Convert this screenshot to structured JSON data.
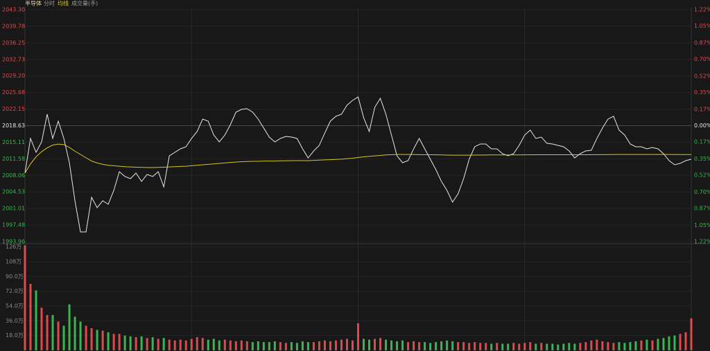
{
  "chart_data": [
    {
      "type": "line",
      "title": "半导体",
      "series": [
        {
          "name": "分时",
          "color": "#e8e8e8",
          "values": [
            2008.54,
            2015.91,
            2012.96,
            2015.17,
            2021.06,
            2015.91,
            2019.59,
            2015.91,
            2010.75,
            2002.65,
            1996.02,
            1996.02,
            2003.39,
            2001.18,
            2002.65,
            2001.91,
            2004.86,
            2008.84,
            2007.81,
            2007.36,
            2008.54,
            2006.77,
            2008.25,
            2007.81,
            2008.84,
            2005.6,
            2012.22,
            2012.96,
            2013.7,
            2014.14,
            2015.91,
            2017.38,
            2020.03,
            2019.59,
            2016.64,
            2015.17,
            2016.64,
            2018.85,
            2021.5,
            2022.09,
            2022.24,
            2021.5,
            2020.03,
            2018.12,
            2016.2,
            2015.17,
            2015.91,
            2016.35,
            2016.2,
            2015.91,
            2013.7,
            2011.78,
            2013.25,
            2014.43,
            2017.08,
            2019.59,
            2020.62,
            2021.06,
            2022.98,
            2024.01,
            2024.74,
            2020.32,
            2017.38,
            2022.53,
            2024.45,
            2021.06,
            2016.64,
            2012.22,
            2010.75,
            2011.19,
            2013.7,
            2015.91,
            2013.7,
            2011.49,
            2009.28,
            2006.77,
            2004.86,
            2002.36,
            2004.12,
            2007.36,
            2011.49,
            2014.14,
            2014.73,
            2014.73,
            2013.7,
            2013.7,
            2012.67,
            2012.22,
            2012.67,
            2014.43,
            2016.64,
            2017.67,
            2015.91,
            2016.2,
            2014.87,
            2014.73,
            2014.43,
            2014.14,
            2013.25,
            2011.78,
            2012.67,
            2013.25,
            2013.4,
            2015.91,
            2018.12,
            2020.03,
            2020.62,
            2017.67,
            2016.64,
            2014.73,
            2014.14,
            2014.14,
            2013.7,
            2013.99,
            2013.7,
            2012.67,
            2011.19,
            2010.31,
            2010.6,
            2011.19,
            2011.49
          ]
        },
        {
          "name": "均线",
          "color": "#d8c81e",
          "values": [
            2008.54,
            2010.5,
            2012.0,
            2013.1,
            2013.9,
            2014.5,
            2014.7,
            2014.6,
            2014.0,
            2013.2,
            2012.5,
            2011.8,
            2011.1,
            2010.7,
            2010.4,
            2010.2,
            2010.1,
            2010.0,
            2009.9,
            2009.85,
            2009.8,
            2009.75,
            2009.72,
            2009.72,
            2009.75,
            2009.8,
            2009.85,
            2009.9,
            2009.95,
            2010.0,
            2010.1,
            2010.2,
            2010.3,
            2010.4,
            2010.5,
            2010.6,
            2010.7,
            2010.8,
            2010.9,
            2010.95,
            2011.0,
            2011.05,
            2011.05,
            2011.1,
            2011.1,
            2011.1,
            2011.15,
            2011.15,
            2011.2,
            2011.2,
            2011.2,
            2011.2,
            2011.25,
            2011.3,
            2011.35,
            2011.4,
            2011.45,
            2011.5,
            2011.6,
            2011.7,
            2011.85,
            2012.0,
            2012.1,
            2012.2,
            2012.3,
            2012.4,
            2012.45,
            2012.5,
            2012.5,
            2012.5,
            2012.48,
            2012.46,
            2012.45,
            2012.44,
            2012.42,
            2012.4,
            2012.38,
            2012.36,
            2012.35,
            2012.35,
            2012.36,
            2012.37,
            2012.38,
            2012.39,
            2012.4,
            2012.4,
            2012.4,
            2012.4,
            2012.4,
            2012.41,
            2012.42,
            2012.43,
            2012.44,
            2012.44,
            2012.45,
            2012.45,
            2012.45,
            2012.45,
            2012.45,
            2012.45,
            2012.45,
            2012.45,
            2012.45,
            2012.46,
            2012.47,
            2012.48,
            2012.49,
            2012.5,
            2012.5,
            2012.5,
            2012.5,
            2012.5,
            2012.5,
            2012.5,
            2012.5,
            2012.5,
            2012.5,
            2012.49,
            2012.49,
            2012.49,
            2012.49
          ]
        }
      ],
      "ylim": [
        1993.96,
        2043.3
      ],
      "yticks": [
        {
          "value": 2043.3,
          "label": "2043.30"
        },
        {
          "value": 2039.78,
          "label": "2039.78"
        },
        {
          "value": 2036.25,
          "label": "2036.25"
        },
        {
          "value": 2032.73,
          "label": "2032.73"
        },
        {
          "value": 2029.2,
          "label": "2029.20"
        },
        {
          "value": 2025.68,
          "label": "2025.68"
        },
        {
          "value": 2022.15,
          "label": "2022.15"
        },
        {
          "value": 2018.63,
          "label": "2018.63"
        },
        {
          "value": 2015.11,
          "label": "2015.11"
        },
        {
          "value": 2011.58,
          "label": "2011.58"
        },
        {
          "value": 2008.06,
          "label": "2008.06"
        },
        {
          "value": 2004.53,
          "label": "2004.53"
        },
        {
          "value": 2001.01,
          "label": "2001.01"
        },
        {
          "value": 1997.48,
          "label": "1997.48"
        },
        {
          "value": 1993.96,
          "label": "1993.96"
        }
      ],
      "y2lim": [
        -1.22,
        1.22
      ],
      "y2ticks": [
        {
          "value": 1.22,
          "label": "1.22%"
        },
        {
          "value": 1.05,
          "label": "1.05%"
        },
        {
          "value": 0.87,
          "label": "0.87%"
        },
        {
          "value": 0.7,
          "label": "0.70%"
        },
        {
          "value": 0.52,
          "label": "0.52%"
        },
        {
          "value": 0.35,
          "label": "0.35%"
        },
        {
          "value": 0.17,
          "label": "0.17%"
        },
        {
          "value": 0,
          "label": "0.00%"
        },
        {
          "value": -0.17,
          "label": "0.17%"
        },
        {
          "value": -0.35,
          "label": "0.35%"
        },
        {
          "value": -0.52,
          "label": "0.52%"
        },
        {
          "value": -0.7,
          "label": "0.70%"
        },
        {
          "value": -0.87,
          "label": "0.87%"
        },
        {
          "value": -1.05,
          "label": "1.05%"
        },
        {
          "value": -1.22,
          "label": "1.22%"
        }
      ],
      "up_color": "#e5484b",
      "flat_color": "#e8e8e8",
      "down_color": "#37b84f",
      "grid": true
    },
    {
      "type": "bar",
      "title": "成交量(手)",
      "values": [
        128,
        81,
        73,
        52,
        43,
        43,
        35,
        30,
        56,
        41,
        35,
        30,
        27,
        25,
        24,
        22,
        20,
        20,
        18,
        17,
        16,
        17,
        15,
        16,
        14,
        15,
        13,
        12,
        13,
        12,
        14,
        16,
        15,
        13,
        14,
        12,
        13,
        12,
        11,
        12,
        11,
        10,
        11,
        10,
        10,
        11,
        10,
        9,
        10,
        9,
        11,
        10,
        10,
        11,
        12,
        11,
        12,
        13,
        14,
        12,
        33,
        14,
        13,
        14,
        15,
        13,
        12,
        11,
        12,
        10,
        11,
        10,
        10,
        9,
        10,
        11,
        12,
        11,
        10,
        10,
        9,
        10,
        9,
        9,
        8,
        9,
        8,
        8,
        9,
        8,
        9,
        10,
        8,
        9,
        8,
        8,
        7,
        8,
        9,
        8,
        9,
        10,
        12,
        13,
        11,
        10,
        9,
        10,
        9,
        10,
        11,
        12,
        13,
        12,
        14,
        15,
        17,
        18,
        20,
        22,
        39
      ],
      "ylim": [
        0,
        130
      ],
      "yticks": [
        {
          "value": 126,
          "label": "126万"
        },
        {
          "value": 108,
          "label": "108万"
        },
        {
          "value": 90,
          "label": "90.0万"
        },
        {
          "value": 72,
          "label": "72.0万"
        },
        {
          "value": 54,
          "label": "54.0万"
        },
        {
          "value": 36,
          "label": "36.0万"
        },
        {
          "value": 18,
          "label": "18.0万"
        }
      ],
      "up_color": "#e5484b",
      "down_color": "#37b84f"
    }
  ]
}
